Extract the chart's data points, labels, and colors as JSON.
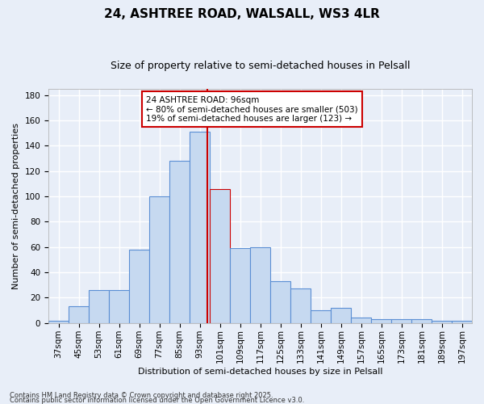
{
  "title": "24, ASHTREE ROAD, WALSALL, WS3 4LR",
  "subtitle": "Size of property relative to semi-detached houses in Pelsall",
  "xlabel": "Distribution of semi-detached houses by size in Pelsall",
  "ylabel": "Number of semi-detached properties",
  "bin_labels": [
    "37sqm",
    "45sqm",
    "53sqm",
    "61sqm",
    "69sqm",
    "77sqm",
    "85sqm",
    "93sqm",
    "101sqm",
    "109sqm",
    "117sqm",
    "125sqm",
    "133sqm",
    "141sqm",
    "149sqm",
    "157sqm",
    "165sqm",
    "173sqm",
    "181sqm",
    "189sqm",
    "197sqm"
  ],
  "bar_heights": [
    2,
    13,
    26,
    26,
    58,
    100,
    128,
    151,
    106,
    59,
    60,
    33,
    27,
    10,
    12,
    4,
    3,
    3,
    3,
    2,
    2
  ],
  "bar_color": "#c6d9f0",
  "bar_edge_color": "#5b8fd4",
  "highlight_bar_index": 8,
  "highlight_bar_color": "#c6d9f0",
  "highlight_bar_edge_color": "#cc0000",
  "vline_x": 96,
  "vline_color": "#cc0000",
  "annotation_title": "24 ASHTREE ROAD: 96sqm",
  "annotation_line1": "← 80% of semi-detached houses are smaller (503)",
  "annotation_line2": "19% of semi-detached houses are larger (123) →",
  "annotation_box_color": "#cc0000",
  "ylim": [
    0,
    185
  ],
  "yticks": [
    0,
    20,
    40,
    60,
    80,
    100,
    120,
    140,
    160,
    180
  ],
  "footer1": "Contains HM Land Registry data © Crown copyright and database right 2025.",
  "footer2": "Contains public sector information licensed under the Open Government Licence v3.0.",
  "bg_color": "#e8eef8",
  "plot_bg_color": "#e8eef8",
  "grid_color": "#ffffff",
  "title_fontsize": 11,
  "subtitle_fontsize": 9,
  "axis_label_fontsize": 8,
  "tick_fontsize": 7.5,
  "footer_fontsize": 6
}
